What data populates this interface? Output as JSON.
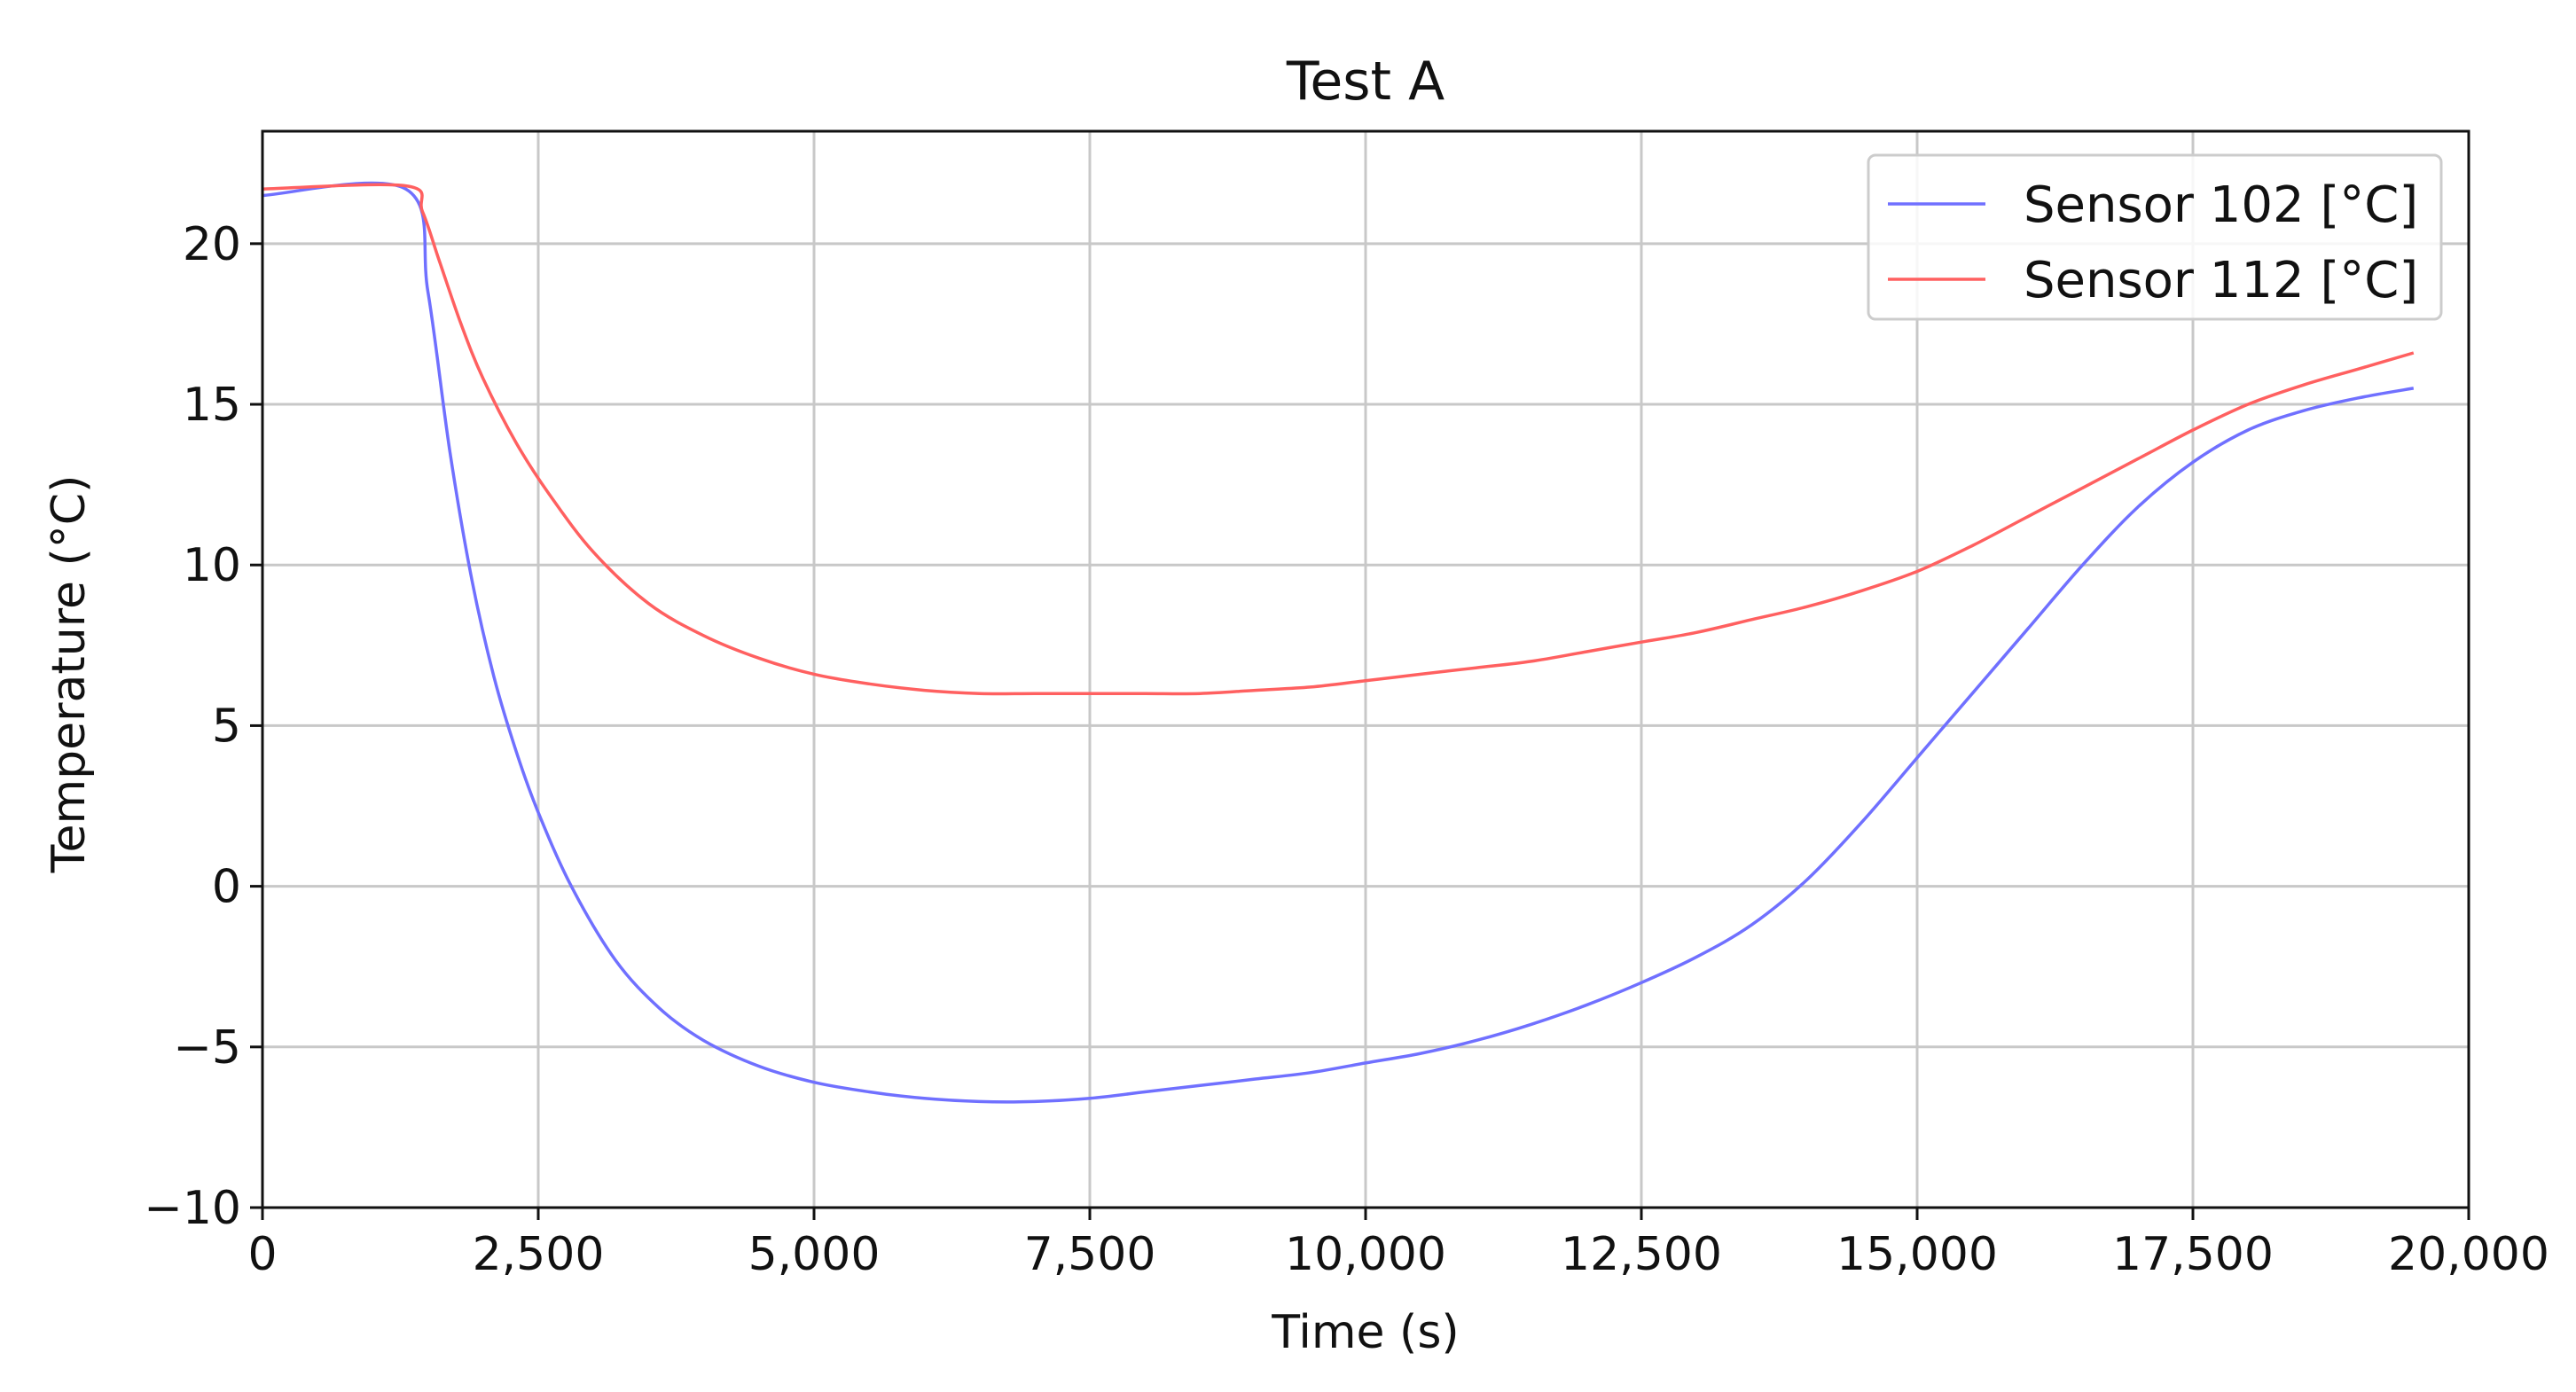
{
  "chart_data": {
    "type": "line",
    "title": "Test A",
    "xlabel": "Time (s)",
    "ylabel": "Temperature (°C)",
    "xlim": [
      0,
      20000
    ],
    "ylim": [
      -10,
      23.5
    ],
    "xticks": [
      0,
      2500,
      5000,
      7500,
      10000,
      12500,
      15000,
      17500,
      20000
    ],
    "xtick_labels": [
      "0",
      "2,500",
      "5,000",
      "7,500",
      "10,000",
      "12,500",
      "15,000",
      "17,500",
      "20,000"
    ],
    "yticks": [
      -10,
      -5,
      0,
      5,
      10,
      15,
      20
    ],
    "ytick_labels": [
      "−10",
      "−5",
      "0",
      "5",
      "10",
      "15",
      "20"
    ],
    "grid": true,
    "legend_position": "top-right",
    "series": [
      {
        "name": "Sensor 102 [°C]",
        "color": "#7070ff",
        "x": [
          0,
          1300,
          1500,
          1700,
          1900,
          2100,
          2300,
          2500,
          2800,
          3200,
          3600,
          4000,
          4500,
          5000,
          5500,
          6000,
          6500,
          7000,
          7500,
          8000,
          8500,
          9000,
          9500,
          10000,
          10500,
          11000,
          11500,
          12000,
          12500,
          13000,
          13500,
          14000,
          14500,
          15000,
          15500,
          16000,
          16500,
          17000,
          17500,
          18000,
          18500,
          19000,
          19500
        ],
        "y": [
          21.5,
          21.7,
          18.5,
          13.5,
          9.5,
          6.5,
          4.2,
          2.3,
          0.0,
          -2.3,
          -3.8,
          -4.8,
          -5.6,
          -6.1,
          -6.4,
          -6.6,
          -6.7,
          -6.7,
          -6.6,
          -6.4,
          -6.2,
          -6.0,
          -5.8,
          -5.5,
          -5.2,
          -4.8,
          -4.3,
          -3.7,
          -3.0,
          -2.2,
          -1.2,
          0.2,
          2.0,
          4.0,
          6.0,
          8.0,
          10.0,
          11.8,
          13.2,
          14.2,
          14.8,
          15.2,
          15.5
        ]
      },
      {
        "name": "Sensor 112 [°C]",
        "color": "#ff6060",
        "x": [
          0,
          1300,
          1450,
          1600,
          1800,
          2000,
          2300,
          2600,
          3000,
          3500,
          4000,
          4500,
          5000,
          5500,
          6000,
          6500,
          7000,
          7500,
          8000,
          8500,
          9000,
          9500,
          10000,
          10500,
          11000,
          11500,
          12000,
          12500,
          13000,
          13500,
          14000,
          14500,
          15000,
          15500,
          16000,
          16500,
          17000,
          17500,
          18000,
          18500,
          19000,
          19500
        ],
        "y": [
          21.7,
          21.8,
          21.0,
          19.5,
          17.5,
          15.8,
          13.8,
          12.2,
          10.4,
          8.8,
          7.8,
          7.1,
          6.6,
          6.3,
          6.1,
          6.0,
          6.0,
          6.0,
          6.0,
          6.0,
          6.1,
          6.2,
          6.4,
          6.6,
          6.8,
          7.0,
          7.3,
          7.6,
          7.9,
          8.3,
          8.7,
          9.2,
          9.8,
          10.6,
          11.5,
          12.4,
          13.3,
          14.2,
          15.0,
          15.6,
          16.1,
          16.6
        ]
      }
    ]
  }
}
